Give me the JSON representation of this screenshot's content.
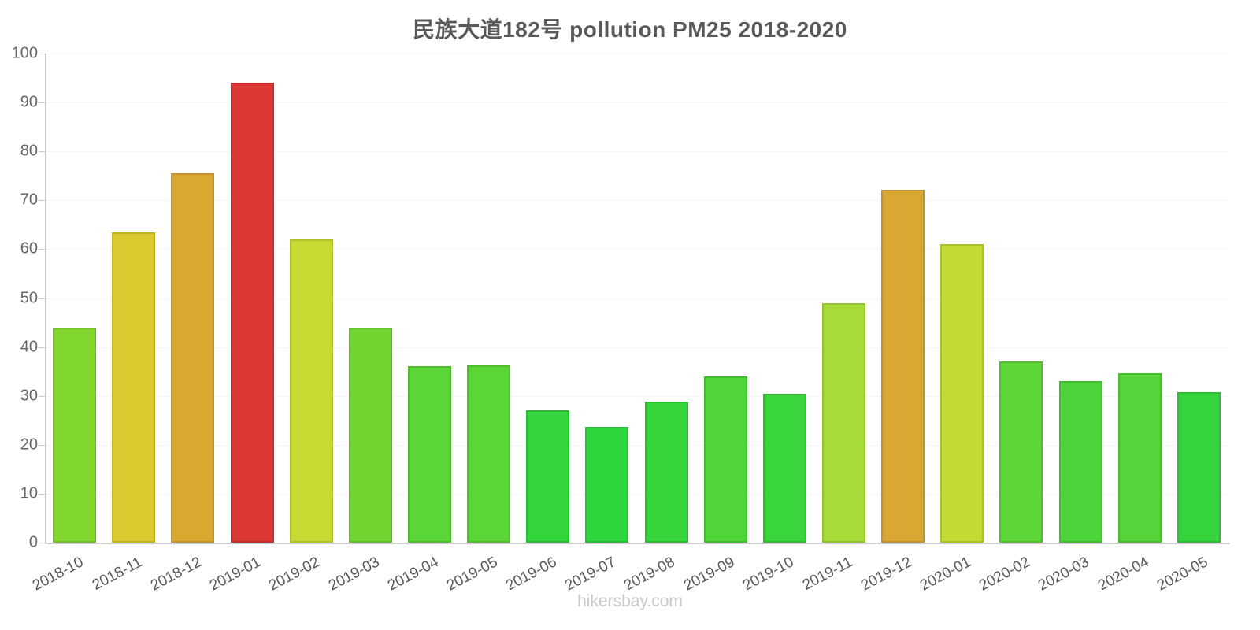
{
  "chart_data": {
    "type": "bar",
    "title": "民族大道182号 pollution PM25 2018-2020",
    "xlabel": "",
    "ylabel": "",
    "ylim": [
      0,
      100
    ],
    "ytick_step": 10,
    "ytick_labels": [
      "0",
      "10",
      "20",
      "30",
      "40",
      "50",
      "60",
      "70",
      "80",
      "90",
      "100"
    ],
    "grid": "faint-horizontal",
    "legend": "none",
    "categories": [
      "2018-10",
      "2018-11",
      "2018-12",
      "2019-01",
      "2019-02",
      "2019-03",
      "2019-04",
      "2019-05",
      "2019-06",
      "2019-07",
      "2019-08",
      "2019-09",
      "2019-10",
      "2019-11",
      "2019-12",
      "2020-01",
      "2020-02",
      "2020-03",
      "2020-04",
      "2020-05"
    ],
    "values": [
      44,
      63.5,
      75.5,
      94,
      62,
      44,
      36,
      36.3,
      27,
      23.7,
      28.8,
      34,
      30.4,
      48.9,
      72.2,
      61,
      37,
      33,
      34.6,
      30.8
    ],
    "bar_colors": [
      "#82d72f",
      "#dcc92f",
      "#dba82f",
      "#db3734",
      "#c6da33",
      "#72d431",
      "#5bd637",
      "#5cd637",
      "#33d53c",
      "#2ed63d",
      "#36d53c",
      "#50d539",
      "#3ad53b",
      "#a6db38",
      "#daa733",
      "#c3d934",
      "#5ed637",
      "#4cd43a",
      "#55d539",
      "#36d43c"
    ]
  },
  "footer": {
    "text": "hikersbay.com"
  },
  "axis_colors": {
    "axis": "#c9c9c9",
    "tick_label": "#666666",
    "title": "#595959",
    "watermark": "#c9c9c9"
  }
}
